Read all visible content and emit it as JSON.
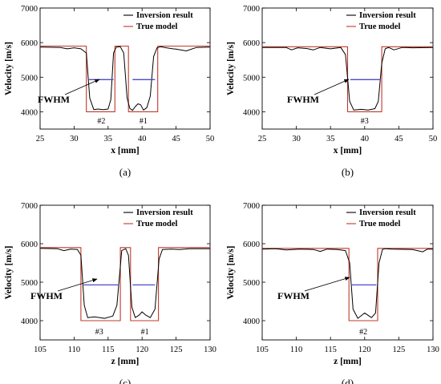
{
  "chart_data": [
    {
      "type": "line",
      "panel_label": "(a)",
      "xlabel": "x [mm]",
      "ylabel": "Velocity [m/s]",
      "xlim": [
        25,
        50
      ],
      "ylim": [
        3500,
        7000
      ],
      "xticks": [
        25,
        30,
        35,
        40,
        45,
        50
      ],
      "yticks": [
        4000,
        5000,
        6000,
        7000
      ],
      "grid": false,
      "legend_position": "top-right",
      "series": [
        {
          "name": "Inversion result",
          "color": "#000000",
          "x": [
            25,
            28,
            29,
            30,
            31,
            31.8,
            32.3,
            32.9,
            33.5,
            34.3,
            35.0,
            35.4,
            35.8,
            36.2,
            36.8,
            37.3,
            37.8,
            38.2,
            38.6,
            39.0,
            39.4,
            39.8,
            40.2,
            40.7,
            41.2,
            41.7,
            42.2,
            42.7,
            43.3,
            44.5,
            45,
            46.5,
            48,
            50
          ],
          "y": [
            5870,
            5860,
            5820,
            5850,
            5820,
            5700,
            4400,
            4060,
            4080,
            4060,
            4080,
            4350,
            5700,
            5870,
            5880,
            5700,
            4400,
            4100,
            4040,
            4150,
            4230,
            4200,
            4050,
            4120,
            4450,
            5600,
            5850,
            5880,
            5860,
            5820,
            5810,
            5760,
            5860,
            5870
          ]
        },
        {
          "name": "True model",
          "color": "#c0392b",
          "x": [
            25,
            31.8,
            31.8,
            36.0,
            36.0,
            38.0,
            38.0,
            42.3,
            42.3,
            50
          ],
          "y": [
            5900,
            5900,
            4000,
            4000,
            5900,
            5900,
            4000,
            4000,
            5900,
            5900
          ]
        }
      ],
      "fwhm_segments": [
        {
          "x": [
            32.2,
            35.8
          ],
          "y": 4930,
          "color": "#4a4ad0"
        },
        {
          "x": [
            38.6,
            41.9
          ],
          "y": 4930,
          "color": "#4a4ad0"
        }
      ],
      "annotations": {
        "fwhm_label": "FWHM",
        "markers": [
          "#2",
          "#1"
        ],
        "marker_x": [
          34.0,
          40.2
        ]
      }
    },
    {
      "type": "line",
      "panel_label": "(b)",
      "xlabel": "x [mm]",
      "ylabel": "Velocity [m/s]",
      "xlim": [
        25,
        50
      ],
      "ylim": [
        3500,
        7000
      ],
      "xticks": [
        25,
        30,
        35,
        40,
        45,
        50
      ],
      "yticks": [
        4000,
        5000,
        6000,
        7000
      ],
      "grid": false,
      "legend_position": "top-right",
      "series": [
        {
          "name": "Inversion result",
          "color": "#000000",
          "x": [
            25,
            28.5,
            29.3,
            30.2,
            31.5,
            32.5,
            33.5,
            35.0,
            36.5,
            37.2,
            37.8,
            38.4,
            39.5,
            40.5,
            41.5,
            42.0,
            42.5,
            43.0,
            43.5,
            44.3,
            45.5,
            47,
            50
          ],
          "y": [
            5860,
            5860,
            5790,
            5850,
            5830,
            5790,
            5860,
            5820,
            5860,
            5650,
            4300,
            4050,
            4070,
            4050,
            4090,
            4300,
            5400,
            5820,
            5860,
            5790,
            5860,
            5850,
            5860
          ]
        },
        {
          "name": "True model",
          "color": "#c0392b",
          "x": [
            25,
            37.5,
            37.5,
            42.5,
            42.5,
            50
          ],
          "y": [
            5880,
            5880,
            4000,
            4000,
            5880,
            5880
          ]
        }
      ],
      "fwhm_segments": [
        {
          "x": [
            37.9,
            42.3
          ],
          "y": 4930,
          "color": "#4a4ad0"
        }
      ],
      "annotations": {
        "fwhm_label": "FWHM",
        "markers": [
          "#3"
        ],
        "marker_x": [
          40.0
        ]
      }
    },
    {
      "type": "line",
      "panel_label": "(c)",
      "xlabel": "z [mm]",
      "ylabel": "Velocity [m/s]",
      "xlim": [
        105,
        130
      ],
      "ylim": [
        3500,
        7000
      ],
      "xticks": [
        105,
        110,
        115,
        120,
        125,
        130
      ],
      "yticks": [
        4000,
        5000,
        6000,
        7000
      ],
      "grid": false,
      "legend_position": "top-right",
      "series": [
        {
          "name": "Inversion result",
          "color": "#000000",
          "x": [
            105,
            107.5,
            108.5,
            109.5,
            110.5,
            111.0,
            111.5,
            112.0,
            113.0,
            114.5,
            115.7,
            116.3,
            117.0,
            117.6,
            118.0,
            118.5,
            119.0,
            119.6,
            120.0,
            120.5,
            121.2,
            121.9,
            122.5,
            123.0,
            124.3,
            125.5,
            127,
            130
          ],
          "y": [
            5880,
            5870,
            5820,
            5860,
            5850,
            5700,
            4400,
            4080,
            4100,
            4060,
            4120,
            4400,
            5820,
            5870,
            5700,
            4350,
            4080,
            4150,
            4230,
            4150,
            4080,
            4300,
            5600,
            5850,
            5860,
            5850,
            5870,
            5870
          ]
        },
        {
          "name": "True model",
          "color": "#c0392b",
          "x": [
            105,
            111.0,
            111.0,
            116.8,
            116.8,
            118.3,
            118.3,
            122.4,
            122.4,
            130
          ],
          "y": [
            5900,
            5900,
            4000,
            4000,
            5900,
            5900,
            4000,
            4000,
            5900,
            5900
          ]
        }
      ],
      "fwhm_segments": [
        {
          "x": [
            111.4,
            116.6
          ],
          "y": 4930,
          "color": "#4a4ad0"
        },
        {
          "x": [
            118.6,
            121.9
          ],
          "y": 4930,
          "color": "#4a4ad0"
        }
      ],
      "annotations": {
        "fwhm_label": "FWHM",
        "markers": [
          "#3",
          "#1"
        ],
        "marker_x": [
          113.7,
          120.4
        ]
      }
    },
    {
      "type": "line",
      "panel_label": "(d)",
      "xlabel": "z [mm]",
      "ylabel": "Velocity [m/s]",
      "xlim": [
        105,
        130
      ],
      "ylim": [
        3500,
        7000
      ],
      "xticks": [
        105,
        110,
        115,
        120,
        125,
        130
      ],
      "yticks": [
        4000,
        5000,
        6000,
        7000
      ],
      "grid": false,
      "legend_position": "top-right",
      "series": [
        {
          "name": "Inversion result",
          "color": "#000000",
          "x": [
            105,
            107,
            108.5,
            110.5,
            112.5,
            113.5,
            114.5,
            116.0,
            117.2,
            117.8,
            118.3,
            119.0,
            120.0,
            121.0,
            121.6,
            122.1,
            122.6,
            123.0,
            124.0,
            127,
            128.5,
            129.2,
            130
          ],
          "y": [
            5860,
            5870,
            5840,
            5860,
            5850,
            5800,
            5860,
            5850,
            5820,
            5500,
            4300,
            4060,
            4200,
            4080,
            4200,
            5500,
            5850,
            5870,
            5860,
            5850,
            5790,
            5860,
            5860
          ]
        },
        {
          "name": "True model",
          "color": "#c0392b",
          "x": [
            105,
            117.7,
            117.7,
            121.9,
            121.9,
            130
          ],
          "y": [
            5880,
            5880,
            4000,
            4000,
            5880,
            5880
          ]
        }
      ],
      "fwhm_segments": [
        {
          "x": [
            118.0,
            121.7
          ],
          "y": 4930,
          "color": "#4a4ad0"
        }
      ],
      "annotations": {
        "fwhm_label": "FWHM",
        "markers": [
          "#2"
        ],
        "marker_x": [
          119.8
        ]
      }
    }
  ]
}
